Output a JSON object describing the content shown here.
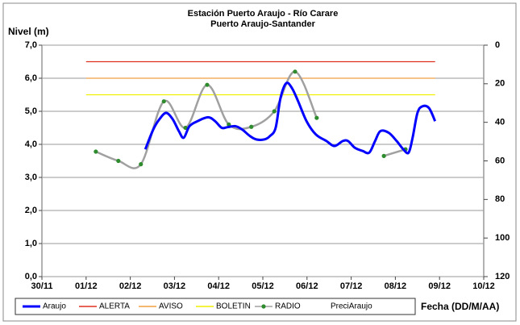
{
  "chart_data": {
    "type": "line",
    "title": "Estación Puerto Araujo - Río Carare",
    "subtitle": "Puerto Araujo-Santander",
    "y_label": "Nivel (m)",
    "x_label": "Fecha (DD/M/AA)",
    "xlim": [
      0,
      10
    ],
    "xticks": [
      {
        "value": 0,
        "label": "30/11"
      },
      {
        "value": 1,
        "label": "01/12"
      },
      {
        "value": 2,
        "label": "02/12"
      },
      {
        "value": 3,
        "label": "03/12"
      },
      {
        "value": 4,
        "label": "04/12"
      },
      {
        "value": 5,
        "label": "05/12"
      },
      {
        "value": 6,
        "label": "06/12"
      },
      {
        "value": 7,
        "label": "07/12"
      },
      {
        "value": 8,
        "label": "08/12"
      },
      {
        "value": 9,
        "label": "09/12"
      },
      {
        "value": 10,
        "label": "10/12"
      }
    ],
    "ylim": [
      0,
      7
    ],
    "yticks": [
      {
        "value": 0,
        "label": "0,0"
      },
      {
        "value": 1,
        "label": "1,0"
      },
      {
        "value": 2,
        "label": "2,0"
      },
      {
        "value": 3,
        "label": "3,0"
      },
      {
        "value": 4,
        "label": "4,0"
      },
      {
        "value": 5,
        "label": "5,0"
      },
      {
        "value": 6,
        "label": "6,0"
      },
      {
        "value": 7,
        "label": "7,0"
      }
    ],
    "y2lim": [
      120,
      0
    ],
    "y2ticks": [
      0,
      20,
      40,
      60,
      80,
      100,
      120
    ],
    "grid": true,
    "legend": "bottom",
    "series": [
      {
        "name": "Araujo",
        "color": "#0000ff",
        "smooth": true,
        "x": [
          2.34,
          2.52,
          2.66,
          2.81,
          2.96,
          3.1,
          3.21,
          3.34,
          3.52,
          3.76,
          3.92,
          4.07,
          4.2,
          4.38,
          4.53,
          4.71,
          4.85,
          5.04,
          5.16,
          5.29,
          5.4,
          5.53,
          5.66,
          5.8,
          5.99,
          6.2,
          6.44,
          6.62,
          6.81,
          6.93,
          7.08,
          7.26,
          7.41,
          7.54,
          7.66,
          7.85,
          8.03,
          8.18,
          8.3,
          8.39,
          8.5,
          8.61,
          8.76,
          8.9
        ],
        "values": [
          3.85,
          4.45,
          4.76,
          4.95,
          4.76,
          4.4,
          4.2,
          4.55,
          4.7,
          4.82,
          4.7,
          4.5,
          4.52,
          4.55,
          4.45,
          4.25,
          4.15,
          4.15,
          4.25,
          4.5,
          5.4,
          5.85,
          5.7,
          5.3,
          4.7,
          4.3,
          4.1,
          3.95,
          4.1,
          4.1,
          3.9,
          3.8,
          3.75,
          4.1,
          4.4,
          4.35,
          4.1,
          3.85,
          3.75,
          4.2,
          4.95,
          5.15,
          5.1,
          4.7
        ]
      },
      {
        "name": "ALERTA",
        "color": "#e03020",
        "x": [
          1,
          8.9
        ],
        "values": [
          6.5,
          6.5
        ]
      },
      {
        "name": "AVISO",
        "color": "#f0a040",
        "x": [
          1,
          8.9
        ],
        "values": [
          6,
          6
        ]
      },
      {
        "name": "BOLETIN",
        "color": "#f0f000",
        "x": [
          1,
          8.9
        ],
        "values": [
          5.5,
          5.5
        ]
      },
      {
        "name": "RADIO",
        "color": "#a0a0a0",
        "marker_color": "#2e8b2e",
        "smooth": true,
        "x": [
          1.22,
          1.73,
          2.24,
          2.76,
          3.25,
          3.74,
          4.23,
          4.74,
          5.26,
          5.73,
          6.22,
          7,
          7.74,
          8.23
        ],
        "values": [
          3.78,
          3.5,
          3.4,
          5.3,
          4.5,
          5.8,
          4.6,
          4.53,
          5.0,
          6.2,
          4.8,
          null,
          3.65,
          3.85
        ]
      },
      {
        "name": "PreciAraujo",
        "axis": "y2",
        "x": [],
        "values": []
      }
    ]
  }
}
